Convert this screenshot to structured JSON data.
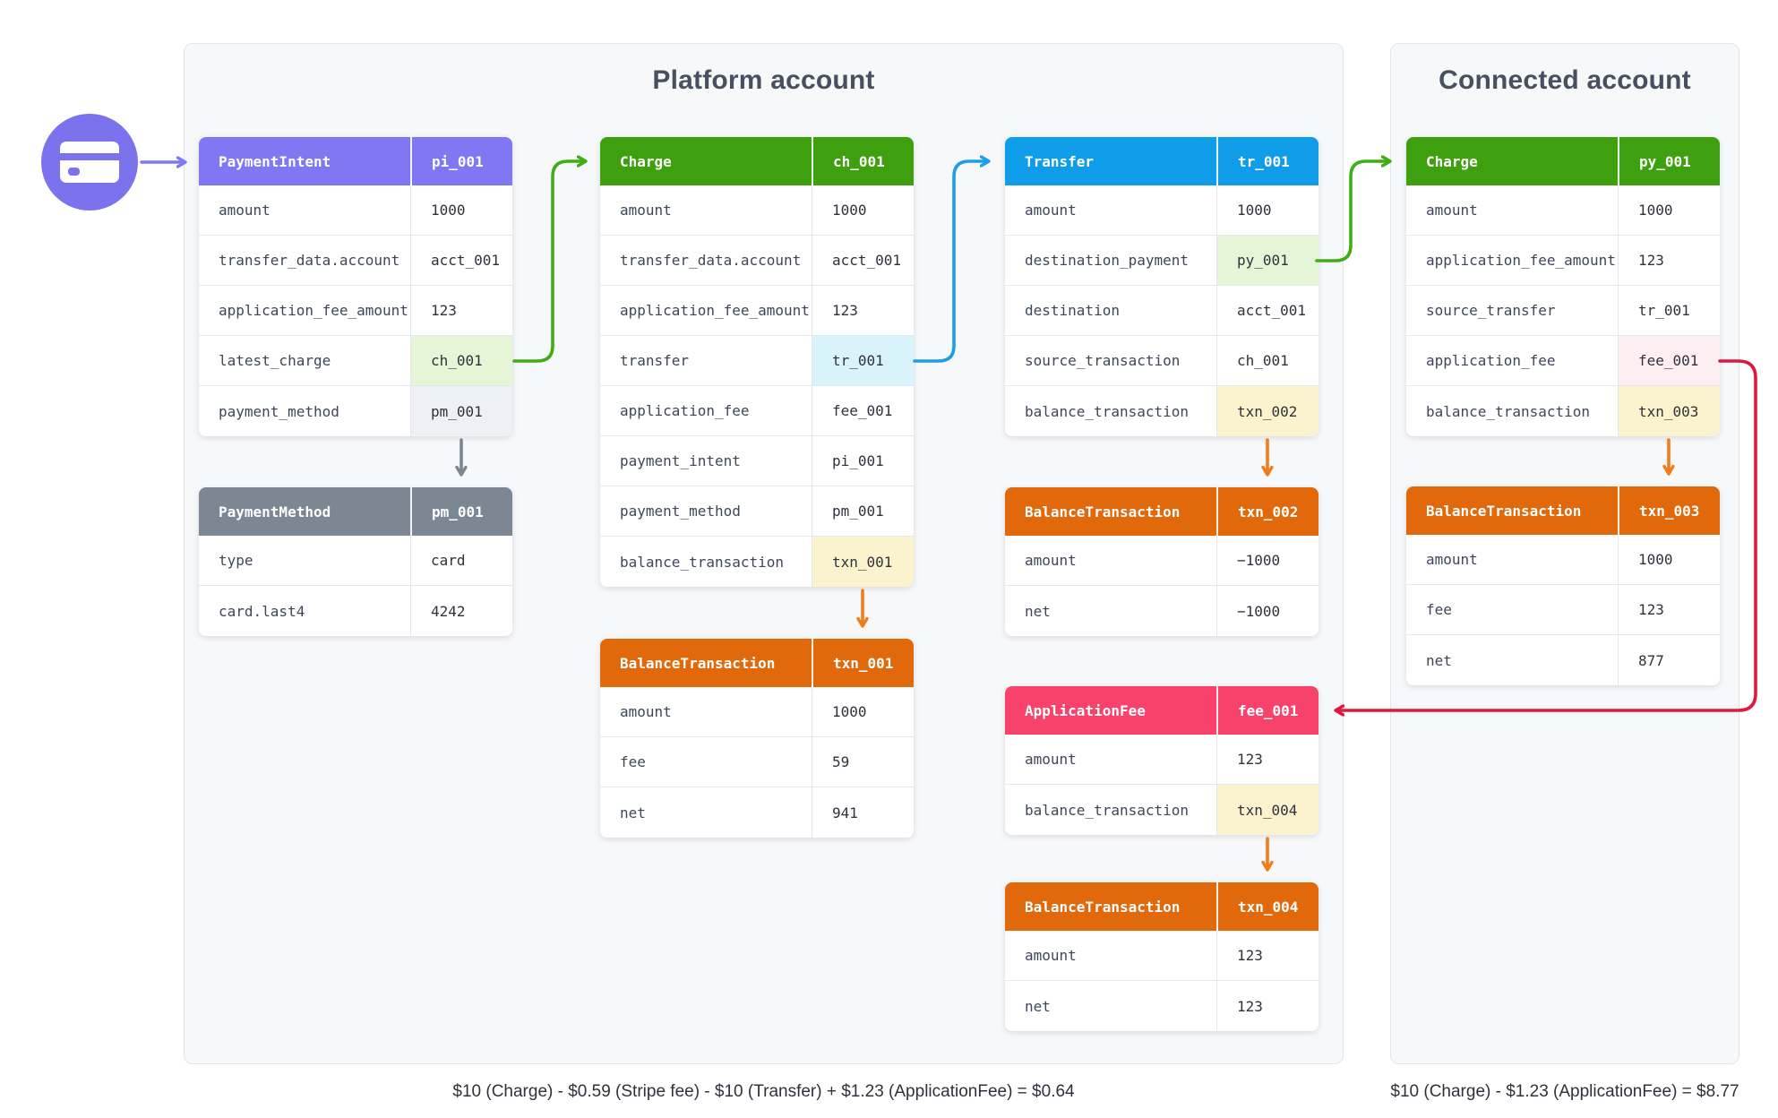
{
  "icon": {
    "name": "credit-card-icon",
    "circle_color": "#7B72EE",
    "card_color": "#FFFFFF"
  },
  "panels": {
    "platform": {
      "title": "Platform account",
      "caption": "$10 (Charge) - $0.59 (Stripe fee) - $10 (Transfer) + $1.23 (ApplicationFee) = $0.64"
    },
    "connected": {
      "title": "Connected account",
      "caption": "$10 (Charge) - $1.23 (ApplicationFee) = $8.77"
    }
  },
  "colors": {
    "purple": "#8077F2",
    "gray": "#7C8794",
    "green": "#3EA00E",
    "blue": "#0F9CE8",
    "orange": "#E1690B",
    "pink": "#F7436B",
    "hl_green": "#E4F6D5",
    "hl_gray": "#EDF0F4",
    "hl_cyan": "#D9F3FB",
    "hl_yellow": "#FAF3CE",
    "hl_pink": "#FDEEF2",
    "arrow_purple": "#8077F2",
    "arrow_gray": "#7C8794",
    "arrow_green": "#3FAD14",
    "arrow_blue": "#1E9DE8",
    "arrow_orange": "#F07D1A",
    "arrow_red": "#E0173F"
  },
  "tables": [
    {
      "name": "payment-intent",
      "panel": "platform",
      "title": "PaymentIntent",
      "id": "pi_001",
      "color": "purple",
      "rows": [
        {
          "key": "amount",
          "value": "1000"
        },
        {
          "key": "transfer_data.account",
          "value": "acct_001"
        },
        {
          "key": "application_fee_amount",
          "value": "123"
        },
        {
          "key": "latest_charge",
          "value": "ch_001",
          "highlight": "hl_green"
        },
        {
          "key": "payment_method",
          "value": "pm_001",
          "highlight": "hl_gray"
        }
      ]
    },
    {
      "name": "payment-method",
      "panel": "platform",
      "title": "PaymentMethod",
      "id": "pm_001",
      "color": "gray",
      "rows": [
        {
          "key": "type",
          "value": "card"
        },
        {
          "key": "card.last4",
          "value": "4242"
        }
      ]
    },
    {
      "name": "charge-platform",
      "panel": "platform",
      "title": "Charge",
      "id": "ch_001",
      "color": "green",
      "rows": [
        {
          "key": "amount",
          "value": "1000"
        },
        {
          "key": "transfer_data.account",
          "value": "acct_001"
        },
        {
          "key": "application_fee_amount",
          "value": "123"
        },
        {
          "key": "transfer",
          "value": "tr_001",
          "highlight": "hl_cyan"
        },
        {
          "key": "application_fee",
          "value": "fee_001"
        },
        {
          "key": "payment_intent",
          "value": "pi_001"
        },
        {
          "key": "payment_method",
          "value": "pm_001"
        },
        {
          "key": "balance_transaction",
          "value": "txn_001",
          "highlight": "hl_yellow"
        }
      ]
    },
    {
      "name": "balance-transaction-txn-001",
      "panel": "platform",
      "title": "BalanceTransaction",
      "id": "txn_001",
      "color": "orange",
      "rows": [
        {
          "key": "amount",
          "value": "1000"
        },
        {
          "key": "fee",
          "value": "59"
        },
        {
          "key": "net",
          "value": "941"
        }
      ]
    },
    {
      "name": "transfer",
      "panel": "platform",
      "title": "Transfer",
      "id": "tr_001",
      "color": "blue",
      "rows": [
        {
          "key": "amount",
          "value": "1000"
        },
        {
          "key": "destination_payment",
          "value": "py_001",
          "highlight": "hl_green"
        },
        {
          "key": "destination",
          "value": "acct_001"
        },
        {
          "key": "source_transaction",
          "value": "ch_001"
        },
        {
          "key": "balance_transaction",
          "value": "txn_002",
          "highlight": "hl_yellow"
        }
      ]
    },
    {
      "name": "balance-transaction-txn-002",
      "panel": "platform",
      "title": "BalanceTransaction",
      "id": "txn_002",
      "color": "orange",
      "rows": [
        {
          "key": "amount",
          "value": "−1000"
        },
        {
          "key": "net",
          "value": "−1000"
        }
      ]
    },
    {
      "name": "application-fee",
      "panel": "platform",
      "title": "ApplicationFee",
      "id": "fee_001",
      "color": "pink",
      "rows": [
        {
          "key": "amount",
          "value": "123"
        },
        {
          "key": "balance_transaction",
          "value": "txn_004",
          "highlight": "hl_yellow"
        }
      ]
    },
    {
      "name": "balance-transaction-txn-004",
      "panel": "platform",
      "title": "BalanceTransaction",
      "id": "txn_004",
      "color": "orange",
      "rows": [
        {
          "key": "amount",
          "value": "123"
        },
        {
          "key": "net",
          "value": "123"
        }
      ]
    },
    {
      "name": "charge-connected",
      "panel": "connected",
      "title": "Charge",
      "id": "py_001",
      "color": "green",
      "rows": [
        {
          "key": "amount",
          "value": "1000"
        },
        {
          "key": "application_fee_amount",
          "value": "123"
        },
        {
          "key": "source_transfer",
          "value": "tr_001"
        },
        {
          "key": "application_fee",
          "value": "fee_001",
          "highlight": "hl_pink"
        },
        {
          "key": "balance_transaction",
          "value": "txn_003",
          "highlight": "hl_yellow"
        }
      ]
    },
    {
      "name": "balance-transaction-txn-003",
      "panel": "connected",
      "title": "BalanceTransaction",
      "id": "txn_003",
      "color": "orange",
      "rows": [
        {
          "key": "amount",
          "value": "1000"
        },
        {
          "key": "fee",
          "value": "123"
        },
        {
          "key": "net",
          "value": "877"
        }
      ]
    }
  ],
  "arrows": [
    {
      "name": "arrow-card-to-paymentintent",
      "color": "arrow_purple"
    },
    {
      "name": "arrow-paymentintent-to-paymentmethod",
      "color": "arrow_gray"
    },
    {
      "name": "arrow-latestcharge-to-charge",
      "color": "arrow_green"
    },
    {
      "name": "arrow-transferfield-to-transfer",
      "color": "arrow_blue"
    },
    {
      "name": "arrow-destinationpayment-to-connectedcharge",
      "color": "arrow_green"
    },
    {
      "name": "arrow-charge-to-txn001",
      "color": "arrow_orange"
    },
    {
      "name": "arrow-transfer-to-txn002",
      "color": "arrow_orange"
    },
    {
      "name": "arrow-applicationfee-to-txn004",
      "color": "arrow_orange"
    },
    {
      "name": "arrow-connectedcharge-to-txn003",
      "color": "arrow_orange"
    },
    {
      "name": "arrow-connectedfee-to-applicationfee",
      "color": "arrow_red"
    }
  ]
}
